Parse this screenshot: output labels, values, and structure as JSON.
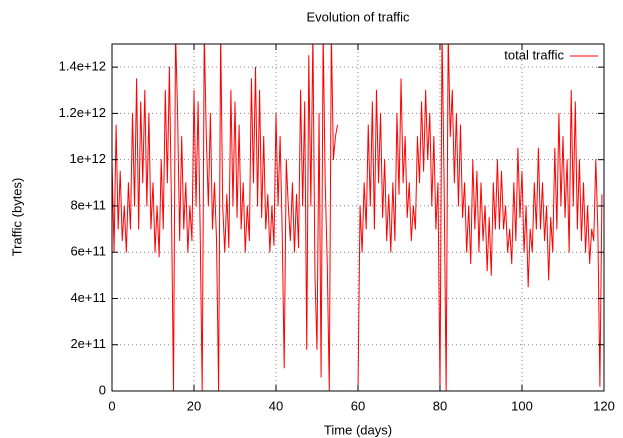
{
  "chart_data": {
    "type": "line",
    "title": "Evolution of traffic",
    "x_label": "Time (days)",
    "y_label": "Traffic (bytes)",
    "xlim": [
      0,
      120
    ],
    "xticks": [
      0,
      20,
      40,
      60,
      80,
      100,
      120
    ],
    "ylim": [
      0,
      1500000000000.0
    ],
    "yticks": [
      0,
      {
        "value": 200000000000.0,
        "label": "2e+11"
      },
      {
        "value": 400000000000.0,
        "label": "4e+11"
      },
      {
        "value": 600000000000.0,
        "label": "6e+11"
      },
      {
        "value": 800000000000.0,
        "label": "8e+11"
      },
      {
        "value": 1000000000000.0,
        "label": "1e+12"
      },
      {
        "value": 1200000000000.0,
        "label": "1.2e+12"
      },
      {
        "value": 1400000000000.0,
        "label": "1.4e+12"
      }
    ],
    "grid": true,
    "legend": "top-right",
    "x": [
      0,
      0.5,
      1,
      1.5,
      2,
      2.5,
      3,
      3.5,
      4,
      4.5,
      5,
      5.5,
      6,
      6.5,
      7,
      7.5,
      8,
      8.5,
      9,
      9.5,
      10,
      10.5,
      11,
      11.5,
      12,
      12.5,
      13,
      13.5,
      14,
      14.5,
      15,
      15.5,
      16,
      16.5,
      17,
      17.5,
      18,
      18.5,
      19,
      19.5,
      20,
      20.5,
      21,
      21.5,
      22,
      22.5,
      23,
      23.5,
      24,
      24.5,
      25,
      25.5,
      26,
      26.5,
      27,
      27.5,
      28,
      28.5,
      29,
      29.5,
      30,
      30.5,
      31,
      31.5,
      32,
      32.5,
      33,
      33.5,
      34,
      34.5,
      35,
      35.5,
      36,
      36.5,
      37,
      37.5,
      38,
      38.5,
      39,
      39.5,
      40,
      40.5,
      41,
      41.5,
      42,
      42.5,
      43,
      43.5,
      44,
      44.5,
      45,
      45.5,
      46,
      46.5,
      47,
      47.5,
      48,
      48.5,
      49,
      49.5,
      50,
      50.5,
      51,
      51.5,
      52,
      52.5,
      53,
      53.5,
      54,
      54.5,
      55,
      55.5,
      56,
      56.5,
      57,
      57.5,
      58,
      58.5,
      59,
      59.5,
      60,
      60.5,
      61,
      61.5,
      62,
      62.5,
      63,
      63.5,
      64,
      64.5,
      65,
      65.5,
      66,
      66.5,
      67,
      67.5,
      68,
      68.5,
      69,
      69.5,
      70,
      70.5,
      71,
      71.5,
      72,
      72.5,
      73,
      73.5,
      74,
      74.5,
      75,
      75.5,
      76,
      76.5,
      77,
      77.5,
      78,
      78.5,
      79,
      79.5,
      80,
      80.5,
      81,
      81.5,
      82,
      82.5,
      83,
      83.5,
      84,
      84.5,
      85,
      85.5,
      86,
      86.5,
      87,
      87.5,
      88,
      88.5,
      89,
      89.5,
      90,
      90.5,
      91,
      91.5,
      92,
      92.5,
      93,
      93.5,
      94,
      94.5,
      95,
      95.5,
      96,
      96.5,
      97,
      97.5,
      98,
      98.5,
      99,
      99.5,
      100,
      100.5,
      101,
      101.5,
      102,
      102.5,
      103,
      103.5,
      104,
      104.5,
      105,
      105.5,
      106,
      106.5,
      107,
      107.5,
      108,
      108.5,
      109,
      109.5,
      110,
      110.5,
      111,
      111.5,
      112,
      112.5,
      113,
      113.5,
      114,
      114.5,
      115,
      115.5,
      116,
      116.5,
      117,
      117.5,
      118,
      118.5,
      119,
      119.5
    ],
    "series": [
      {
        "name": "total traffic",
        "color": "#ff0000",
        "values": [
          1000000000000.0,
          600000000000.0,
          1150000000000.0,
          700000000000.0,
          950000000000.0,
          650000000000.0,
          800000000000.0,
          600000000000.0,
          900000000000.0,
          700000000000.0,
          1200000000000.0,
          800000000000.0,
          1350000000000.0,
          700000000000.0,
          1250000000000.0,
          900000000000.0,
          1300000000000.0,
          800000000000.0,
          1200000000000.0,
          700000000000.0,
          900000000000.0,
          600000000000.0,
          800000000000.0,
          580000000000.0,
          1000000000000.0,
          700000000000.0,
          1300000000000.0,
          900000000000.0,
          1400000000000.0,
          800000000000.0,
          0,
          1550000000000.0,
          1200000000000.0,
          650000000000.0,
          1100000000000.0,
          700000000000.0,
          900000000000.0,
          600000000000.0,
          800000000000.0,
          650000000000.0,
          1300000000000.0,
          800000000000.0,
          1250000000000.0,
          700000000000.0,
          0,
          1550000000000.0,
          1100000000000.0,
          800000000000.0,
          1200000000000.0,
          700000000000.0,
          900000000000.0,
          650000000000.0,
          0,
          1550000000000.0,
          800000000000.0,
          600000000000.0,
          850000000000.0,
          620000000000.0,
          1300000000000.0,
          800000000000.0,
          1250000000000.0,
          750000000000.0,
          1150000000000.0,
          700000000000.0,
          900000000000.0,
          600000000000.0,
          800000000000.0,
          650000000000.0,
          1350000000000.0,
          900000000000.0,
          1400000000000.0,
          800000000000.0,
          1300000000000.0,
          750000000000.0,
          1100000000000.0,
          700000000000.0,
          850000000000.0,
          600000000000.0,
          800000000000.0,
          630000000000.0,
          1200000000000.0,
          800000000000.0,
          1100000000000.0,
          700000000000.0,
          100000000000.0,
          1000000000000.0,
          800000000000.0,
          650000000000.0,
          900000000000.0,
          600000000000.0,
          850000000000.0,
          620000000000.0,
          1300000000000.0,
          800000000000.0,
          1250000000000.0,
          180000000000.0,
          1450000000000.0,
          800000000000.0,
          1550000000000.0,
          500000000000.0,
          180000000000.0,
          1200000000000.0,
          60000000000.0,
          1550000000000.0,
          900000000000.0,
          550000000000.0,
          0,
          1550000000000.0,
          1000000000000.0,
          1100000000000.0,
          1150000000000.0,
          null,
          null,
          null,
          null,
          null,
          null,
          null,
          null,
          null,
          0,
          800000000000.0,
          600000000000.0,
          900000000000.0,
          700000000000.0,
          1150000000000.0,
          800000000000.0,
          1250000000000.0,
          700000000000.0,
          1300000000000.0,
          900000000000.0,
          1200000000000.0,
          750000000000.0,
          1000000000000.0,
          650000000000.0,
          850000000000.0,
          600000000000.0,
          900000000000.0,
          650000000000.0,
          1200000000000.0,
          850000000000.0,
          1350000000000.0,
          900000000000.0,
          1100000000000.0,
          750000000000.0,
          900000000000.0,
          650000000000.0,
          800000000000.0,
          700000000000.0,
          1100000000000.0,
          900000000000.0,
          1250000000000.0,
          950000000000.0,
          1300000000000.0,
          1000000000000.0,
          1200000000000.0,
          800000000000.0,
          1100000000000.0,
          700000000000.0,
          900000000000.0,
          0,
          1550000000000.0,
          900000000000.0,
          0,
          1550000000000.0,
          1100000000000.0,
          1300000000000.0,
          900000000000.0,
          1200000000000.0,
          800000000000.0,
          1150000000000.0,
          750000000000.0,
          900000000000.0,
          600000000000.0,
          800000000000.0,
          550000000000.0,
          1000000000000.0,
          700000000000.0,
          950000000000.0,
          600000000000.0,
          900000000000.0,
          650000000000.0,
          800000000000.0,
          520000000000.0,
          750000000000.0,
          500000000000.0,
          900000000000.0,
          700000000000.0,
          1000000000000.0,
          700000000000.0,
          950000000000.0,
          700000000000.0,
          800000000000.0,
          600000000000.0,
          700000000000.0,
          550000000000.0,
          900000000000.0,
          650000000000.0,
          1050000000000.0,
          750000000000.0,
          950000000000.0,
          600000000000.0,
          800000000000.0,
          450000000000.0,
          700000000000.0,
          600000000000.0,
          900000000000.0,
          700000000000.0,
          1050000000000.0,
          700000000000.0,
          900000000000.0,
          650000000000.0,
          800000000000.0,
          480000000000.0,
          750000000000.0,
          600000000000.0,
          1050000000000.0,
          700000000000.0,
          1200000000000.0,
          800000000000.0,
          1100000000000.0,
          750000000000.0,
          1000000000000.0,
          600000000000.0,
          1300000000000.0,
          800000000000.0,
          1250000000000.0,
          700000000000.0,
          1000000000000.0,
          650000000000.0,
          900000000000.0,
          600000000000.0,
          800000000000.0,
          550000000000.0,
          700000000000.0,
          650000000000.0,
          1000000000000.0,
          700000000000.0,
          20000000000.0,
          850000000000.0
        ]
      }
    ]
  }
}
